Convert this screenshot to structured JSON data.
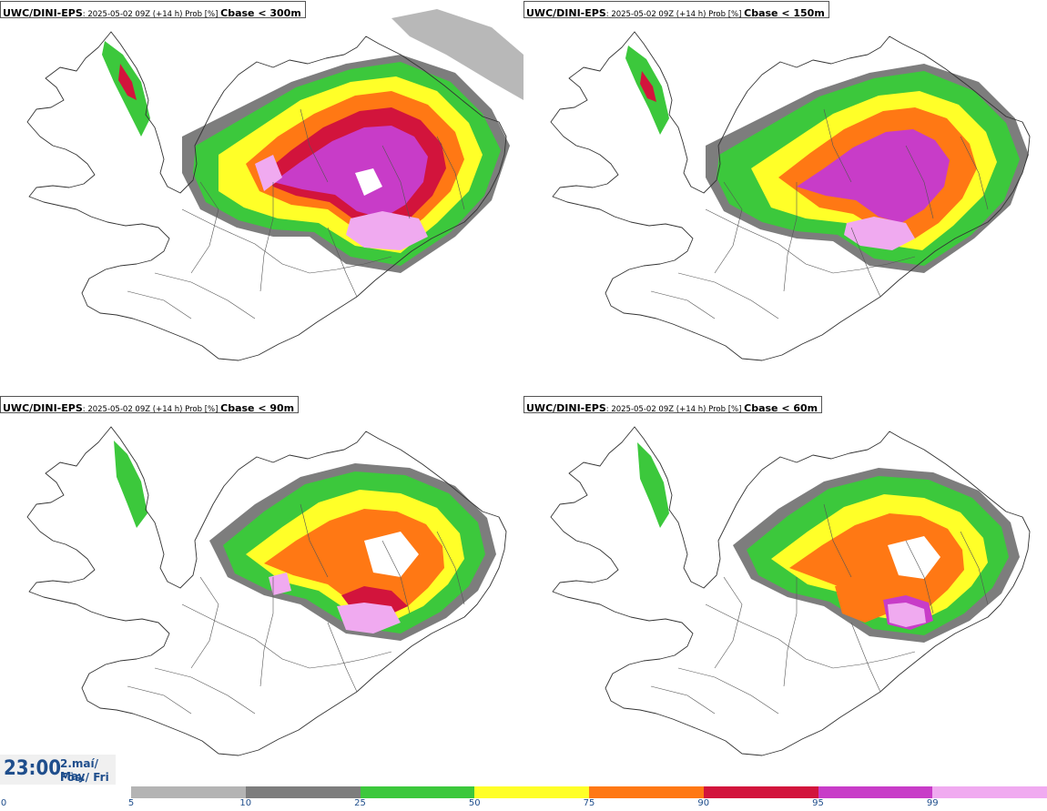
{
  "panels": [
    {
      "model": "UWC/DINI-EPS",
      "run": "2025-05-02 09Z (+14 h) Prob [%]",
      "field": "Cbase < 300m"
    },
    {
      "model": "UWC/DINI-EPS",
      "run": "2025-05-02 09Z (+14 h) Prob [%]",
      "field": "Cbase < 150m"
    },
    {
      "model": "UWC/DINI-EPS",
      "run": "2025-05-02 09Z (+14 h) Prob [%]",
      "field": "Cbase < 90m"
    },
    {
      "model": "UWC/DINI-EPS",
      "run": "2025-05-02 09Z (+14 h) Prob [%]",
      "field": "Cbase < 60m"
    }
  ],
  "valid_time": {
    "time": "23:00",
    "date": "2.maí/ May",
    "day": "Fös./ Fri"
  },
  "legend": {
    "labels": [
      "0",
      "5",
      "10",
      "25",
      "50",
      "75",
      "90",
      "95",
      "99"
    ],
    "colors": [
      "#b4b4b4",
      "#7d7d7d",
      "#3cc83c",
      "#ffff28",
      "#ff7814",
      "#d2143c",
      "#c83cc8",
      "#f0aaf0"
    ]
  },
  "colors": {
    "outline": "#333333",
    "prob_gray_light": "#b4b4b4",
    "prob_gray_dark": "#7d7d7d",
    "prob_green": "#3cc83c",
    "prob_yellow": "#ffff28",
    "prob_orange": "#ff7814",
    "prob_red": "#d2143c",
    "prob_magenta": "#c83cc8",
    "prob_pink": "#f0aaf0",
    "label_blue": "#1f4e8c"
  }
}
